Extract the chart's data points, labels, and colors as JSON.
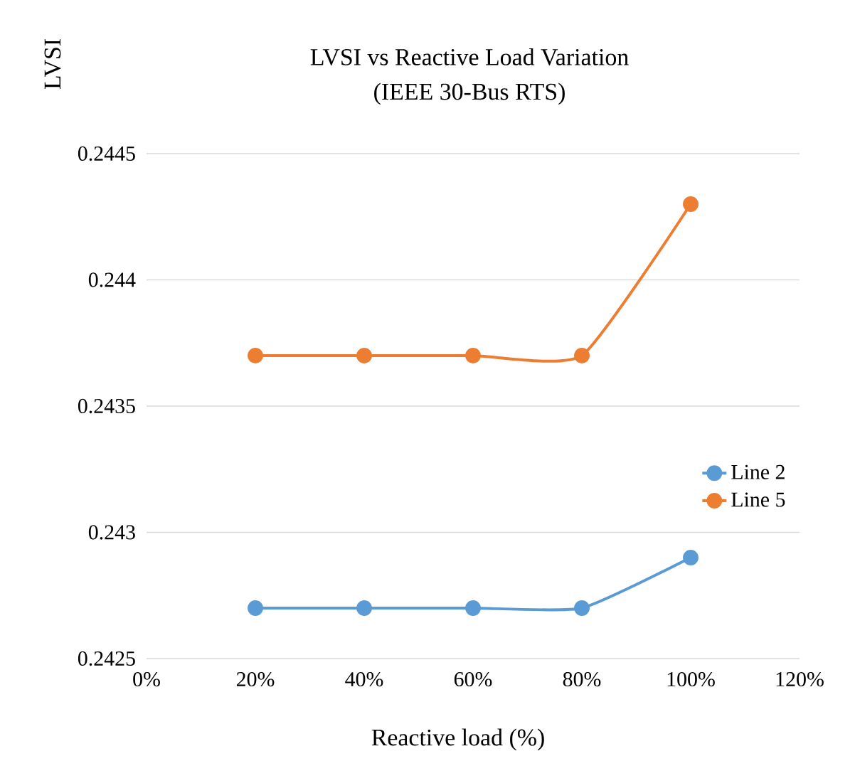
{
  "chart_data": {
    "type": "line",
    "title": "LVSI vs Reactive Load Variation",
    "subtitle": "(IEEE 30-Bus RTS)",
    "xlabel": "Reactive load (%)",
    "ylabel": "LVSI",
    "x": [
      20,
      40,
      60,
      80,
      100
    ],
    "series": [
      {
        "name": "Line 2",
        "color": "#5b9bd5",
        "values": [
          0.2427,
          0.2427,
          0.2427,
          0.2427,
          0.2429
        ]
      },
      {
        "name": "Line 5",
        "color": "#ed7d31",
        "values": [
          0.2437,
          0.2437,
          0.2437,
          0.2437,
          0.2443
        ]
      }
    ],
    "xlim": [
      0,
      120
    ],
    "xticks": [
      {
        "value": 0,
        "label": "0%"
      },
      {
        "value": 20,
        "label": "20%"
      },
      {
        "value": 40,
        "label": "40%"
      },
      {
        "value": 60,
        "label": "60%"
      },
      {
        "value": 80,
        "label": "80%"
      },
      {
        "value": 100,
        "label": "100%"
      },
      {
        "value": 120,
        "label": "120%"
      }
    ],
    "ylim": [
      0.2425,
      0.2445
    ],
    "yticks": [
      0.2425,
      0.243,
      0.2435,
      0.244,
      0.2445
    ],
    "grid": "y",
    "legend": "right",
    "marker": "circle",
    "line_style": "solid"
  }
}
